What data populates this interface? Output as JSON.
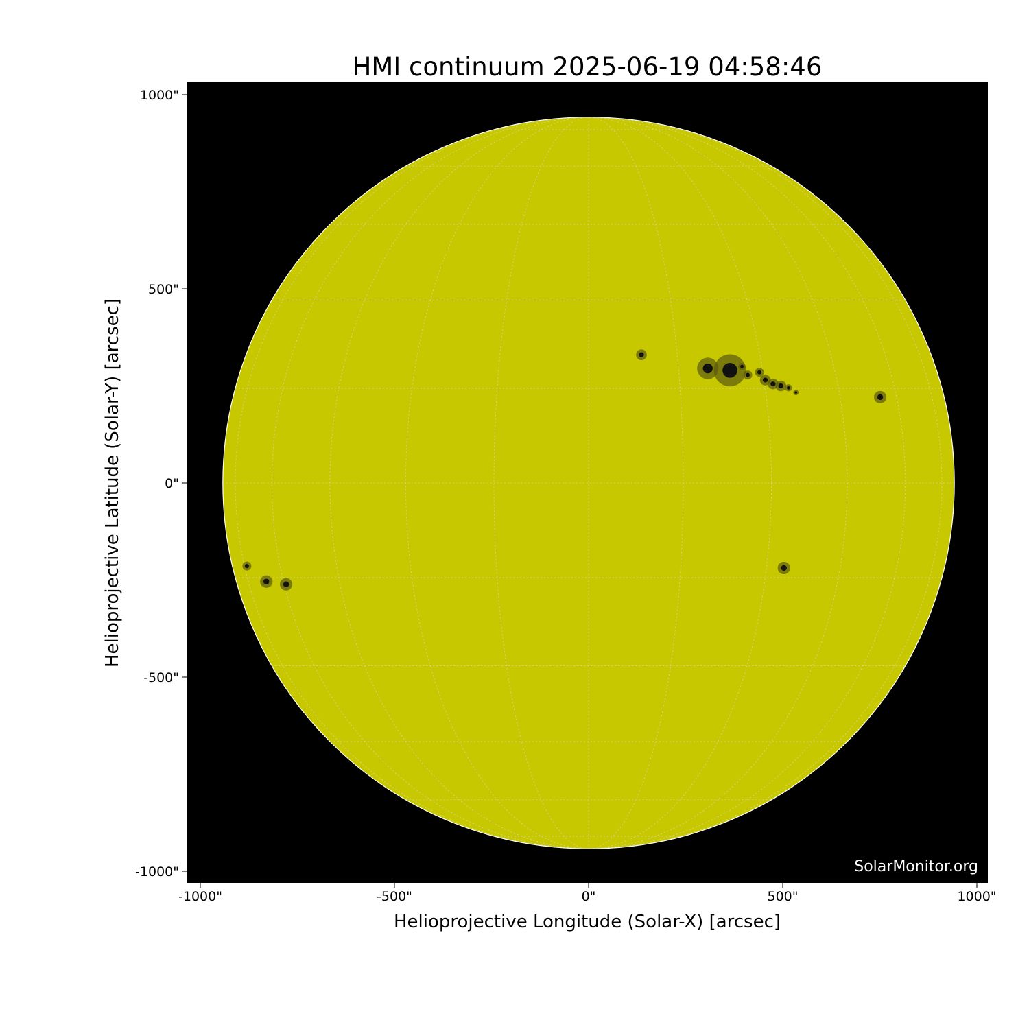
{
  "chart_data": {
    "type": "image",
    "title": "HMI continuum 2025-06-19 04:58:46",
    "xlabel": "Helioprojective Longitude (Solar-X) [arcsec]",
    "ylabel": "Helioprojective Latitude (Solar-Y) [arcsec]",
    "xlim": [
      -1035,
      1030
    ],
    "ylim": [
      -1035,
      1030
    ],
    "xticks": [
      -1000,
      -500,
      0,
      500,
      1000
    ],
    "xtick_labels": [
      "-1000\"",
      "-500\"",
      "0\"",
      "500\"",
      "1000\""
    ],
    "yticks": [
      1000,
      500,
      0,
      -500,
      -1000
    ],
    "ytick_labels": [
      "1000\"",
      "500\"",
      "0\"",
      "-500\"",
      "-1000\""
    ],
    "background_color": "#000000",
    "disk_color": "#c8c800",
    "solar_radius_arcsec": 942,
    "grid": "heliographic, 15 degree spacing, dotted",
    "sunspots": [
      {
        "x": 136,
        "y": 330,
        "size": 6
      },
      {
        "x": 307,
        "y": 295,
        "size": 12
      },
      {
        "x": 364,
        "y": 290,
        "size": 18
      },
      {
        "x": 395,
        "y": 300,
        "size": 4
      },
      {
        "x": 410,
        "y": 278,
        "size": 5
      },
      {
        "x": 440,
        "y": 285,
        "size": 5
      },
      {
        "x": 455,
        "y": 265,
        "size": 6
      },
      {
        "x": 475,
        "y": 255,
        "size": 6
      },
      {
        "x": 495,
        "y": 250,
        "size": 6
      },
      {
        "x": 515,
        "y": 245,
        "size": 4
      },
      {
        "x": 534,
        "y": 233,
        "size": 3
      },
      {
        "x": 751,
        "y": 221,
        "size": 7
      },
      {
        "x": 503,
        "y": -219,
        "size": 7
      },
      {
        "x": -880,
        "y": -214,
        "size": 5
      },
      {
        "x": -830,
        "y": -254,
        "size": 7
      },
      {
        "x": -779,
        "y": -261,
        "size": 7
      }
    ],
    "watermark": "SolarMonitor.org"
  }
}
